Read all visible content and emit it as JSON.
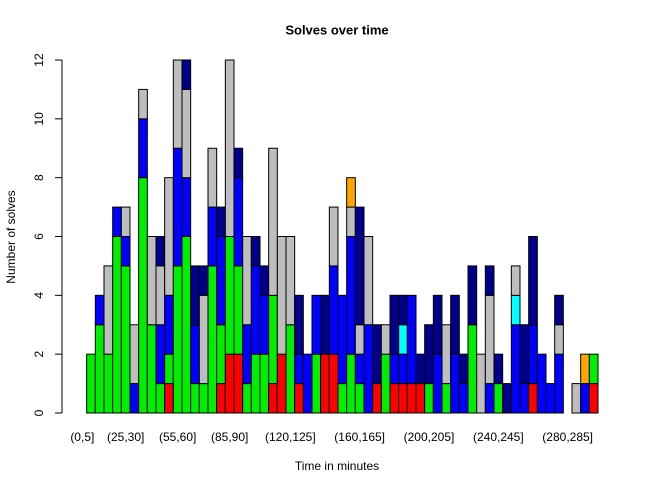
{
  "chart_data": {
    "type": "stacked-bar",
    "title": "Solves over time",
    "x_label": "Time in minutes",
    "y_label": "Number of solves",
    "categories": [
      "(0,5]",
      null,
      null,
      null,
      null,
      "(25,30]",
      null,
      null,
      null,
      null,
      null,
      "(55,60]",
      null,
      null,
      null,
      null,
      null,
      "(85,90]",
      null,
      null,
      null,
      null,
      null,
      null,
      "(120,125]",
      null,
      null,
      null,
      null,
      null,
      null,
      null,
      "(160,165]",
      null,
      null,
      null,
      null,
      null,
      null,
      null,
      "(200,205]",
      null,
      null,
      null,
      null,
      null,
      null,
      null,
      "(240,245]",
      null,
      null,
      null,
      null,
      null,
      null,
      null,
      "(280,285]",
      null,
      null,
      null
    ],
    "series": [
      {
        "color": "#ff0000",
        "values": [
          0,
          0,
          0,
          0,
          0,
          0,
          0,
          0,
          0,
          0,
          1,
          0,
          0,
          0,
          0,
          0,
          1,
          2,
          2,
          0,
          0,
          0,
          1,
          2,
          0,
          1,
          0,
          0,
          2,
          2,
          0,
          0,
          0,
          0,
          1,
          0,
          1,
          1,
          1,
          1,
          0,
          0,
          0,
          0,
          0,
          0,
          0,
          0,
          0,
          0,
          0,
          0,
          1,
          0,
          0,
          0,
          0,
          0,
          0,
          1
        ]
      },
      {
        "color": "#00ee00",
        "values": [
          0,
          2,
          3,
          2,
          6,
          5,
          0,
          8,
          3,
          1,
          1,
          5,
          6,
          1,
          1,
          5,
          2,
          4,
          3,
          1,
          2,
          2,
          3,
          0,
          3,
          0,
          0,
          2,
          0,
          0,
          1,
          2,
          1,
          0,
          0,
          2,
          0,
          0,
          0,
          0,
          1,
          0,
          1,
          0,
          0,
          3,
          0,
          0,
          1,
          0,
          0,
          0,
          0,
          0,
          0,
          0,
          0,
          0,
          0,
          1
        ]
      },
      {
        "color": "#0000ff",
        "values": [
          0,
          0,
          1,
          0,
          1,
          1,
          1,
          2,
          0,
          2,
          2,
          4,
          2,
          2,
          0,
          2,
          3,
          0,
          3,
          2,
          3,
          2,
          0,
          0,
          0,
          1,
          2,
          2,
          0,
          3,
          3,
          4,
          1,
          3,
          0,
          0,
          1,
          1,
          3,
          0,
          0,
          2,
          0,
          2,
          1,
          0,
          0,
          1,
          0,
          0,
          3,
          1,
          2,
          2,
          1,
          2,
          0,
          0,
          1,
          0
        ]
      },
      {
        "color": "#00ffff",
        "values": [
          0,
          0,
          0,
          0,
          0,
          0,
          0,
          0,
          0,
          0,
          0,
          0,
          0,
          0,
          0,
          0,
          0,
          0,
          0,
          0,
          0,
          0,
          0,
          0,
          0,
          0,
          0,
          0,
          0,
          0,
          0,
          0,
          0,
          0,
          0,
          0,
          0,
          1,
          0,
          0,
          0,
          0,
          0,
          0,
          0,
          0,
          0,
          0,
          0,
          0,
          1,
          0,
          0,
          0,
          0,
          0,
          0,
          0,
          0,
          0
        ]
      },
      {
        "color": "#bebebe",
        "values": [
          0,
          0,
          0,
          3,
          0,
          1,
          2,
          1,
          3,
          2,
          4,
          3,
          3,
          0,
          3,
          2,
          0,
          6,
          0,
          3,
          0,
          0,
          5,
          4,
          3,
          0,
          0,
          0,
          0,
          2,
          0,
          1,
          1,
          3,
          0,
          1,
          0,
          0,
          0,
          0,
          0,
          0,
          2,
          0,
          0,
          0,
          2,
          3,
          0,
          0,
          1,
          0,
          0,
          0,
          0,
          1,
          0,
          1,
          0,
          0
        ]
      },
      {
        "color": "#00008b",
        "values": [
          0,
          0,
          0,
          0,
          0,
          0,
          0,
          0,
          0,
          1,
          0,
          0,
          1,
          2,
          1,
          0,
          1,
          0,
          1,
          0,
          1,
          1,
          0,
          0,
          0,
          2,
          0,
          0,
          2,
          0,
          0,
          0,
          4,
          0,
          2,
          0,
          2,
          1,
          0,
          1,
          2,
          2,
          0,
          2,
          1,
          2,
          0,
          1,
          1,
          1,
          0,
          2,
          3,
          0,
          0,
          1,
          0,
          0,
          0,
          0
        ]
      },
      {
        "color": "#ffa500",
        "values": [
          0,
          0,
          0,
          0,
          0,
          0,
          0,
          0,
          0,
          0,
          0,
          0,
          0,
          0,
          0,
          0,
          0,
          0,
          0,
          0,
          0,
          0,
          0,
          0,
          0,
          0,
          0,
          0,
          0,
          0,
          0,
          1,
          0,
          0,
          0,
          0,
          0,
          0,
          0,
          0,
          0,
          0,
          0,
          0,
          0,
          0,
          0,
          0,
          0,
          0,
          0,
          0,
          0,
          0,
          0,
          0,
          0,
          0,
          1,
          0
        ]
      }
    ],
    "ylim": [
      0,
      12
    ],
    "yticks": [
      0,
      2,
      4,
      6,
      8,
      10,
      12
    ]
  }
}
